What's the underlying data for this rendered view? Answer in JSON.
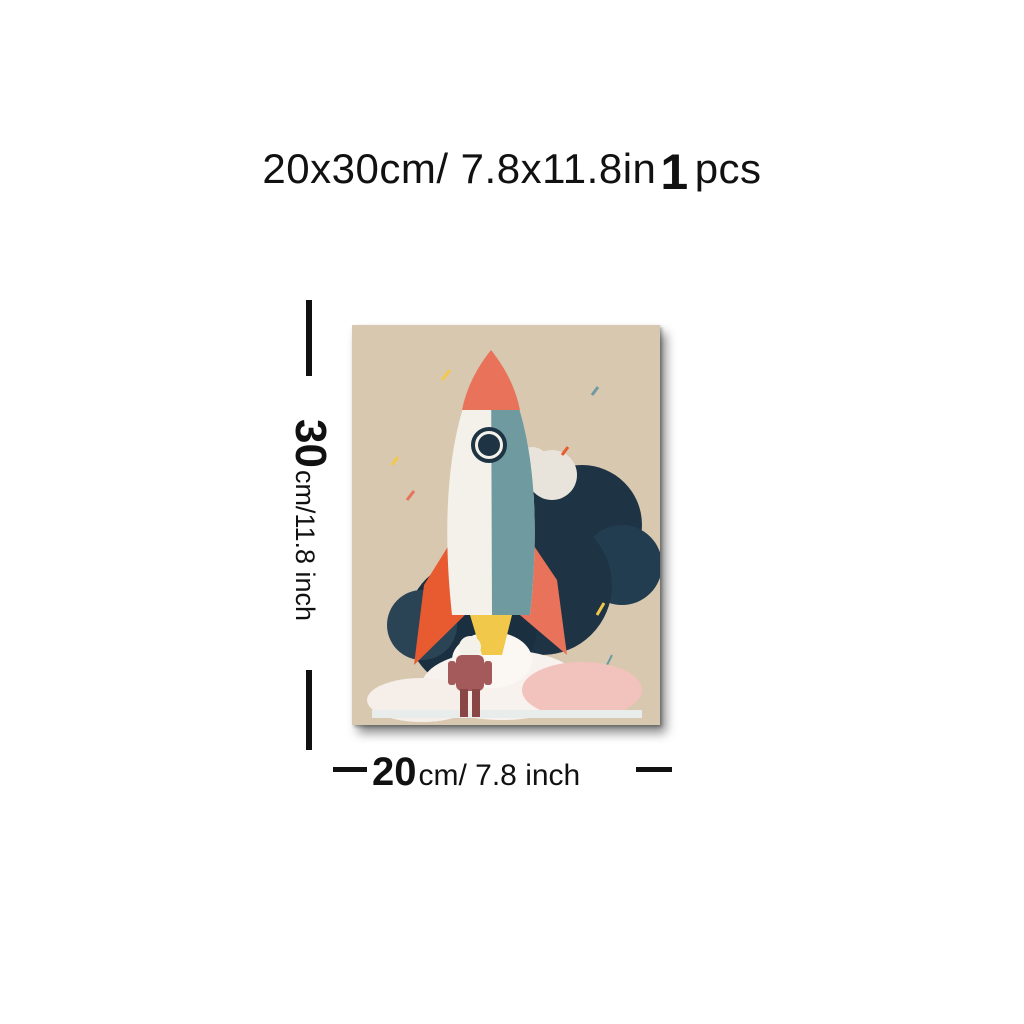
{
  "headline": {
    "dims": "20x30cm/ 7.8x11.8in",
    "count": "1",
    "unit": "pcs"
  },
  "height_label": {
    "value": "30",
    "unit": "cm/11.8 inch"
  },
  "width_label": {
    "value": "20",
    "unit": "cm/ 7.8 inch"
  },
  "artwork": {
    "subject": "rocket-launch-illustration",
    "colors": {
      "background": "#d8c8b0",
      "rocket_body": "#f4f1ea",
      "rocket_shade": "#6f9aa0",
      "nose_cone": "#e8735a",
      "fins": "#e85a30",
      "smoke_dark": "#1e3444",
      "cloud_pink": "#f2c2bd",
      "astronaut": "#a45a5a"
    }
  }
}
